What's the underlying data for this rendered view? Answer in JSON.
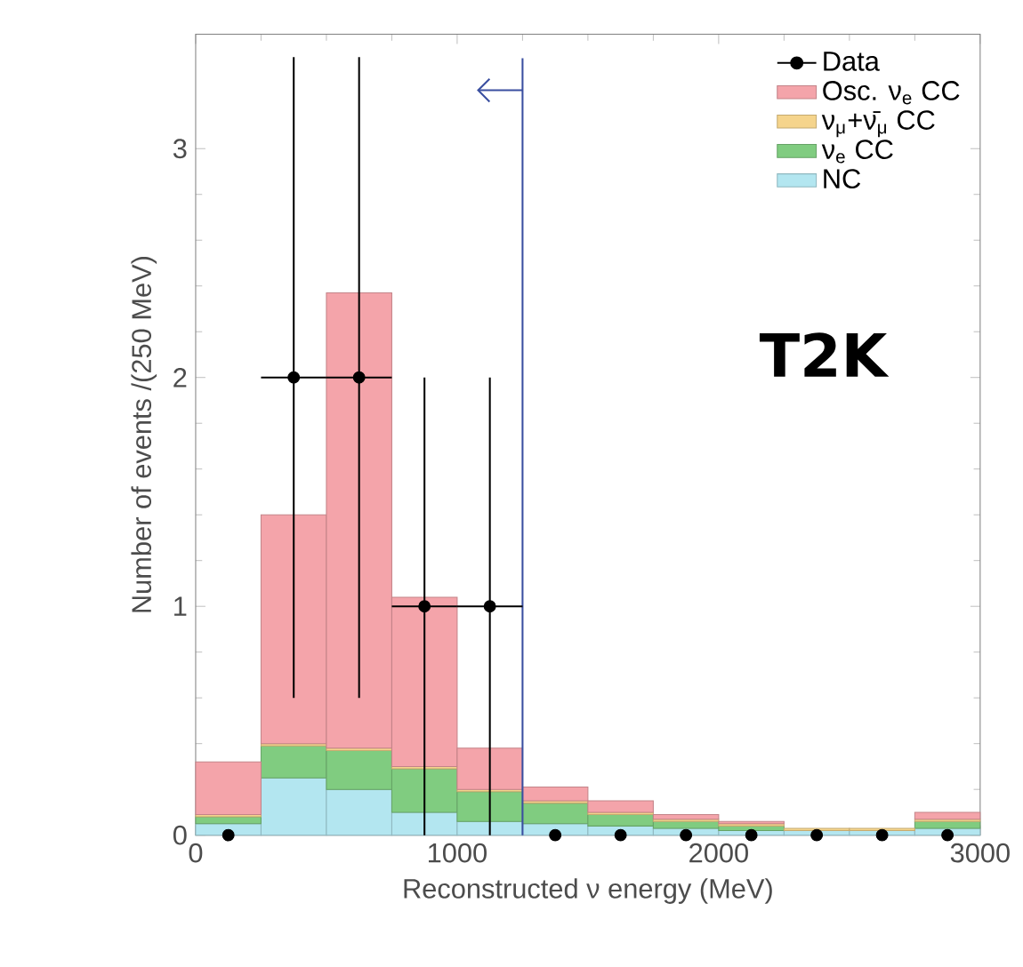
{
  "chart_data": {
    "type": "bar",
    "xlabel": "Reconstructed ν energy (MeV)",
    "ylabel": "Number of events /(250 MeV)",
    "x": [
      125,
      375,
      625,
      875,
      1125,
      1375,
      1625,
      1875,
      2125,
      2375,
      2625,
      2875
    ],
    "stacked": true,
    "series": [
      {
        "name": "NC",
        "color": "#b3e6f0",
        "values": [
          0.05,
          0.25,
          0.2,
          0.1,
          0.06,
          0.05,
          0.04,
          0.03,
          0.02,
          0.02,
          0.02,
          0.03
        ]
      },
      {
        "name": "ν$_{e}$ CC",
        "color": "#80cc80",
        "values": [
          0.03,
          0.14,
          0.17,
          0.19,
          0.13,
          0.09,
          0.05,
          0.03,
          0.02,
          0.0,
          0.0,
          0.03
        ]
      },
      {
        "name": "ν$_{μ}$+ν̄$_{μ}$ CC",
        "color": "#f5d48c",
        "values": [
          0.01,
          0.01,
          0.01,
          0.01,
          0.01,
          0.01,
          0.01,
          0.01,
          0.01,
          0.01,
          0.01,
          0.01
        ]
      },
      {
        "name": "Osc. ν$_{e}$ CC",
        "color": "#f4a4aa",
        "values": [
          0.23,
          1.0,
          1.99,
          0.74,
          0.18,
          0.06,
          0.05,
          0.02,
          0.01,
          0.0,
          0.0,
          0.03
        ]
      },
      {
        "name": "Data",
        "type": "scatter",
        "color": "#000000",
        "x": [
          125,
          375,
          625,
          875,
          1125,
          1375,
          1625,
          1875,
          2125,
          2375,
          2625,
          2875
        ],
        "values": [
          0,
          2,
          2,
          1,
          1,
          0,
          0,
          0,
          0,
          0,
          0,
          0
        ],
        "errors": [
          null,
          [
            0.6,
            3.4
          ],
          [
            0.6,
            3.4
          ],
          [
            0,
            2
          ],
          [
            0,
            2
          ],
          null,
          null,
          null,
          null,
          null,
          null,
          null
        ],
        "xerrors": [
          null,
          125,
          125,
          125,
          125,
          null,
          null,
          null,
          null,
          null,
          null,
          null
        ]
      }
    ],
    "marker": "circle",
    "xlim": [
      0,
      3000
    ],
    "ylim": [
      0,
      3.5
    ],
    "xticks": [
      0,
      1000,
      2000,
      3000
    ],
    "yticks": [
      0,
      1,
      2,
      3
    ],
    "ref_lines": [
      {
        "axis": "x",
        "value": 1250,
        "color": "#3a4fa0"
      }
    ],
    "annotations": [
      "T2K"
    ],
    "legend": "top right"
  }
}
